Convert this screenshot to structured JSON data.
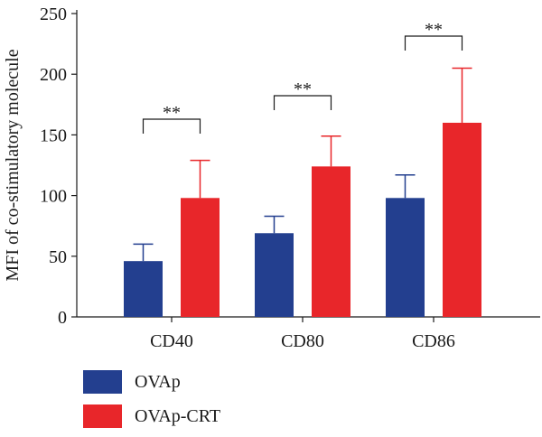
{
  "chart_data": {
    "type": "bar",
    "categories": [
      "CD40",
      "CD80",
      "CD86"
    ],
    "series": [
      {
        "name": "OVAp",
        "color": "#233f8f",
        "values": [
          46,
          69,
          98
        ],
        "errors": [
          14,
          14,
          19
        ]
      },
      {
        "name": "OVAp-CRT",
        "color": "#e8262a",
        "values": [
          98,
          124,
          160
        ],
        "errors": [
          31,
          25,
          45
        ]
      }
    ],
    "ylabel": "MFI of co-stimulatory molecule",
    "xlabel": "",
    "ylim": [
      0,
      250
    ],
    "yticks": [
      "0",
      "50",
      "100",
      "150",
      "200",
      "250"
    ],
    "significance": [
      "**",
      "**",
      "**"
    ],
    "grid": false,
    "legend_position": "bottom-left"
  }
}
